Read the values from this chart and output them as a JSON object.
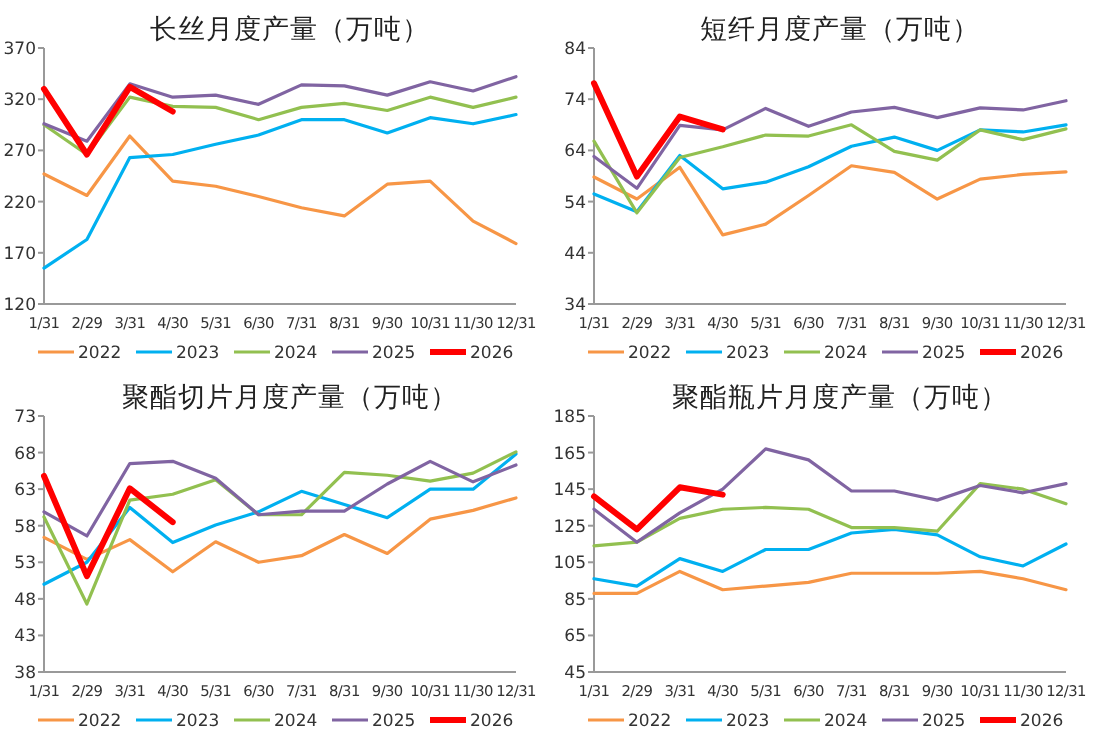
{
  "chart_data": [
    {
      "type": "line",
      "title": "长丝月度产量（万吨）",
      "categories": [
        "1/31",
        "2/29",
        "3/31",
        "4/30",
        "5/31",
        "6/30",
        "7/31",
        "8/31",
        "9/30",
        "10/31",
        "11/30",
        "12/31"
      ],
      "ylim": [
        120,
        370
      ],
      "yticks": [
        120,
        170,
        220,
        270,
        320,
        370
      ],
      "grid": false,
      "legend": "bottom",
      "series": [
        {
          "name": "2022",
          "color": "#f79646",
          "values": [
            247,
            226,
            284,
            240,
            235,
            225,
            214,
            206,
            237,
            240,
            201,
            179
          ]
        },
        {
          "name": "2023",
          "color": "#00b0f0",
          "values": [
            155,
            183,
            263,
            266,
            276,
            285,
            300,
            300,
            287,
            302,
            296,
            305
          ]
        },
        {
          "name": "2024",
          "color": "#92c050",
          "values": [
            295,
            266,
            322,
            313,
            312,
            300,
            312,
            316,
            309,
            322,
            312,
            322
          ]
        },
        {
          "name": "2025",
          "color": "#8064a2",
          "values": [
            296,
            279,
            335,
            322,
            324,
            315,
            334,
            333,
            324,
            337,
            328,
            342
          ]
        },
        {
          "name": "2026",
          "color": "#ff0000",
          "values": [
            330,
            266,
            332,
            308,
            null,
            null,
            null,
            null,
            null,
            null,
            null,
            null
          ]
        }
      ]
    },
    {
      "type": "line",
      "title": "短纤月度产量（万吨）",
      "categories": [
        "1/31",
        "2/29",
        "3/31",
        "4/30",
        "5/31",
        "6/30",
        "7/31",
        "8/31",
        "9/30",
        "10/31",
        "11/30",
        "12/31"
      ],
      "ylim": [
        34,
        84
      ],
      "yticks": [
        34,
        44,
        54,
        64,
        74,
        84
      ],
      "grid": false,
      "legend": "bottom",
      "series": [
        {
          "name": "2022",
          "color": "#f79646",
          "values": [
            58.8,
            54.5,
            60.7,
            47.5,
            49.6,
            55.2,
            61.0,
            59.7,
            54.5,
            58.4,
            59.3,
            59.8
          ]
        },
        {
          "name": "2023",
          "color": "#00b0f0",
          "values": [
            55.5,
            52.0,
            63.0,
            56.5,
            57.8,
            60.8,
            64.8,
            66.6,
            64.0,
            68.0,
            67.6,
            69.0
          ]
        },
        {
          "name": "2024",
          "color": "#92c050",
          "values": [
            65.8,
            51.8,
            62.6,
            64.7,
            67.0,
            66.8,
            69.0,
            63.8,
            62.1,
            68.0,
            66.1,
            68.2
          ]
        },
        {
          "name": "2025",
          "color": "#8064a2",
          "values": [
            62.8,
            56.6,
            68.9,
            68.0,
            72.2,
            68.7,
            71.5,
            72.4,
            70.4,
            72.3,
            71.9,
            73.7
          ]
        },
        {
          "name": "2026",
          "color": "#ff0000",
          "values": [
            77.1,
            58.9,
            70.6,
            68.1,
            null,
            null,
            null,
            null,
            null,
            null,
            null,
            null
          ]
        }
      ]
    },
    {
      "type": "line",
      "title": "聚酯切片月度产量（万吨）",
      "categories": [
        "1/31",
        "2/29",
        "3/31",
        "4/30",
        "5/31",
        "6/30",
        "7/31",
        "8/31",
        "9/30",
        "10/31",
        "11/30",
        "12/31"
      ],
      "ylim": [
        38,
        73
      ],
      "yticks": [
        38,
        43,
        48,
        53,
        58,
        63,
        68,
        73
      ],
      "grid": false,
      "legend": "bottom",
      "series": [
        {
          "name": "2022",
          "color": "#f79646",
          "values": [
            56.4,
            53.4,
            56.1,
            51.7,
            55.8,
            53.0,
            53.9,
            56.8,
            54.2,
            58.9,
            60.1,
            61.8
          ]
        },
        {
          "name": "2023",
          "color": "#00b0f0",
          "values": [
            50.0,
            53.0,
            60.5,
            55.7,
            58.1,
            59.9,
            62.7,
            60.9,
            59.1,
            63.0,
            63.0,
            67.8
          ]
        },
        {
          "name": "2024",
          "color": "#92c050",
          "values": [
            59.2,
            47.3,
            61.5,
            62.3,
            64.3,
            59.5,
            59.5,
            65.3,
            64.9,
            64.1,
            65.2,
            68.1
          ]
        },
        {
          "name": "2025",
          "color": "#8064a2",
          "values": [
            59.9,
            56.6,
            66.5,
            66.8,
            64.5,
            59.5,
            60.0,
            60.0,
            63.7,
            66.8,
            64.0,
            66.3
          ]
        },
        {
          "name": "2026",
          "color": "#ff0000",
          "values": [
            64.8,
            51.1,
            63.1,
            58.5,
            null,
            null,
            null,
            null,
            null,
            null,
            null,
            null
          ]
        }
      ]
    },
    {
      "type": "line",
      "title": "聚酯瓶片月度产量（万吨）",
      "categories": [
        "1/31",
        "2/29",
        "3/31",
        "4/30",
        "5/31",
        "6/30",
        "7/31",
        "8/31",
        "9/30",
        "10/31",
        "11/30",
        "12/31"
      ],
      "ylim": [
        45,
        185
      ],
      "yticks": [
        45,
        65,
        85,
        105,
        125,
        145,
        165,
        185
      ],
      "grid": false,
      "legend": "bottom",
      "series": [
        {
          "name": "2022",
          "color": "#f79646",
          "values": [
            88,
            88,
            100,
            90,
            92,
            94,
            99,
            99,
            99,
            100,
            96,
            90
          ]
        },
        {
          "name": "2023",
          "color": "#00b0f0",
          "values": [
            96,
            92,
            107,
            100,
            112,
            112,
            121,
            123,
            120,
            108,
            103,
            115
          ]
        },
        {
          "name": "2024",
          "color": "#92c050",
          "values": [
            114,
            116,
            129,
            134,
            135,
            134,
            124,
            124,
            122,
            148,
            145,
            137
          ]
        },
        {
          "name": "2025",
          "color": "#8064a2",
          "values": [
            134,
            116,
            132,
            145,
            167,
            161,
            144,
            144,
            139,
            147,
            143,
            148
          ]
        },
        {
          "name": "2026",
          "color": "#ff0000",
          "values": [
            141,
            123,
            146,
            142,
            null,
            null,
            null,
            null,
            null,
            null,
            null,
            null
          ]
        }
      ]
    }
  ]
}
